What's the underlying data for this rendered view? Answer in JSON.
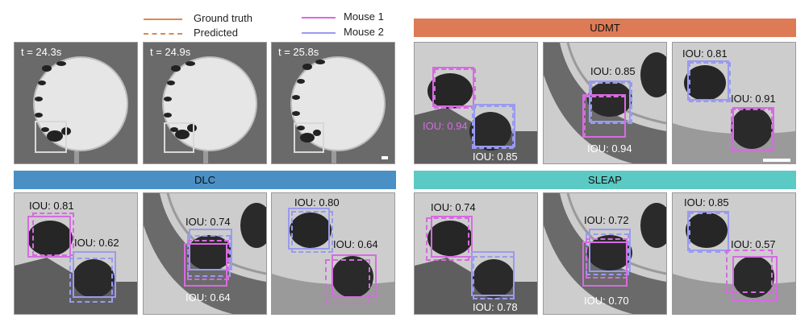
{
  "legend": {
    "ground_truth": "Ground truth",
    "predicted": "Predicted",
    "mouse1": "Mouse 1",
    "mouse2": "Mouse 2"
  },
  "colors": {
    "legend_line": "#d98a55",
    "mouse1": "#d66be0",
    "mouse2": "#9a9af0",
    "udmt_banner": "#de7b57",
    "dlc_banner": "#4a90c4",
    "sleap_banner": "#5ccac4"
  },
  "overview": {
    "times": [
      "t = 24.3s",
      "t = 24.9s",
      "t = 25.8s"
    ]
  },
  "methods": {
    "udmt": {
      "name": "UDMT",
      "ious": [
        [
          "IOU: 0.94",
          "IOU: 0.85"
        ],
        [
          "IOU: 0.85",
          "IOU: 0.94"
        ],
        [
          "IOU: 0.81",
          "IOU: 0.91"
        ]
      ]
    },
    "dlc": {
      "name": "DLC",
      "ious": [
        [
          "IOU: 0.81",
          "IOU: 0.62"
        ],
        [
          "IOU: 0.74",
          "IOU: 0.64"
        ],
        [
          "IOU: 0.80",
          "IOU: 0.64"
        ]
      ]
    },
    "sleap": {
      "name": "SLEAP",
      "ious": [
        [
          "IOU: 0.74",
          "IOU: 0.78"
        ],
        [
          "IOU: 0.72",
          "IOU: 0.70"
        ],
        [
          "IOU: 0.85",
          "IOU: 0.57"
        ]
      ]
    }
  }
}
